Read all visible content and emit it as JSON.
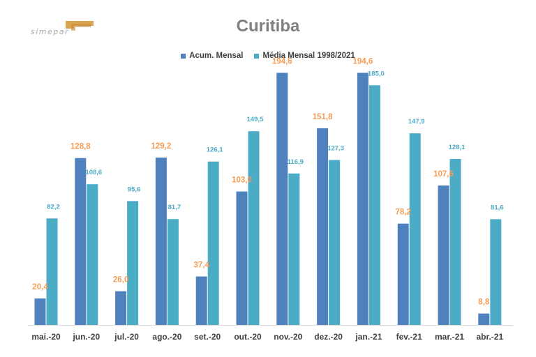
{
  "brand": {
    "logo_text": "simepar"
  },
  "colors": {
    "acum": "#4f81bd",
    "media": "#4bacc6",
    "acum_label": "#f59d56",
    "media_label": "#4bacc6",
    "title": "#7f7f7f",
    "axis_label": "#404040"
  },
  "chart_data": {
    "type": "bar",
    "title": "Curitiba",
    "xlabel": "",
    "ylabel": "",
    "ylim": [
      0,
      200
    ],
    "grid": false,
    "legend_position": "top",
    "categories": [
      "mai.-20",
      "jun.-20",
      "jul.-20",
      "ago.-20",
      "set.-20",
      "out.-20",
      "nov.-20",
      "dez.-20",
      "jan.-21",
      "fev.-21",
      "mar.-21",
      "abr.-21"
    ],
    "series": [
      {
        "name": "Acum. Mensal",
        "values": [
          20.4,
          128.8,
          26.0,
          129.2,
          37.4,
          103.0,
          194.6,
          151.8,
          194.6,
          78.2,
          107.6,
          8.8
        ],
        "labels": [
          "20,4",
          "128,8",
          "26,0",
          "129,2",
          "37,4",
          "103,0",
          "194,6",
          "151,8",
          "194,6",
          "78,2",
          "107,6",
          "8,8"
        ]
      },
      {
        "name": "Média Mensal 1998/2021",
        "values": [
          82.2,
          108.6,
          95.6,
          81.7,
          126.1,
          149.5,
          116.9,
          127.3,
          185.0,
          147.9,
          128.1,
          81.6
        ],
        "labels": [
          "82,2",
          "108,6",
          "95,6",
          "81,7",
          "126,1",
          "149,5",
          "116,9",
          "127,3",
          "185,0",
          "147,9",
          "128,1",
          "81,6"
        ]
      }
    ]
  }
}
